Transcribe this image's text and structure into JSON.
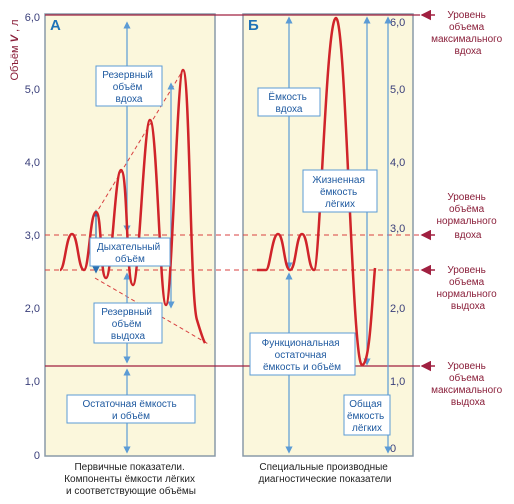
{
  "y_axis": {
    "label_prefix": "Объём",
    "label_var": "V",
    "label_unit": ", л",
    "ticks": [
      "0",
      "1,0",
      "2,0",
      "3,0",
      "4,0",
      "5,0",
      "6,0"
    ]
  },
  "panel_a": {
    "letter": "А",
    "boxes": {
      "irv": [
        "Резервный",
        "объём",
        "вдоха"
      ],
      "tv": [
        "Дыхательный",
        "объём"
      ],
      "erv": [
        "Резервный",
        "объём",
        "выдоха"
      ],
      "rv": [
        "Остаточная ёмкость",
        "и объём"
      ]
    },
    "caption": [
      "Первичные показатели.",
      "Компоненты ёмкости лёгких",
      "и соответствующие объёмы"
    ]
  },
  "panel_b": {
    "letter": "Б",
    "boxes": {
      "ic": [
        "Ёмкость",
        "вдоха"
      ],
      "vc": [
        "Жизненная",
        "ёмкость",
        "лёгких"
      ],
      "frc": [
        "Функциональная",
        "остаточная",
        "ёмкость и объём"
      ],
      "tlc": [
        "Общая",
        "ёмкость",
        "лёгких"
      ]
    },
    "caption": [
      "Специальные производные",
      "диагностические показатели"
    ]
  },
  "levels": {
    "max_inspiration": [
      "Уровень",
      "объема",
      "максимального",
      "вдоха"
    ],
    "normal_inspiration": [
      "Уровень",
      "объёма",
      "нормального",
      "вдоха"
    ],
    "normal_expiration": [
      "Уровень",
      "объема",
      "нормального",
      "выдоха"
    ],
    "max_expiration": [
      "Уровень",
      "объема",
      "максимального",
      "выдоха"
    ]
  },
  "colors": {
    "panel_bg": "#fbf7dc",
    "panel_border": "#8a9aa8",
    "curve": "#d0242a",
    "guide": "#d84040",
    "arrow": "#5b9bd5",
    "level_line": "#a02040"
  }
}
